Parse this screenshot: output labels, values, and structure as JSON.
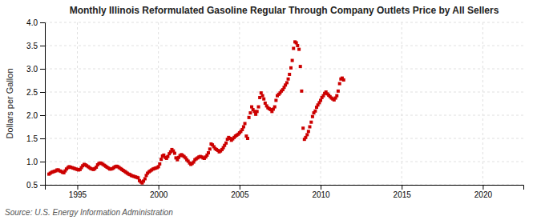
{
  "chart_data": {
    "type": "scatter",
    "title": "Monthly Illinois Reformulated Gasoline Regular Through Company Outlets Price by All Sellers",
    "ylabel": "Dollars per Gallon",
    "annotation": "Source: U.S. Energy Information Administration",
    "color": "#CC0000",
    "marker": "square",
    "grid": true,
    "xlim": [
      1993.0,
      2022.5
    ],
    "xticks": [
      1995,
      2000,
      2005,
      2010,
      2015,
      2020
    ],
    "ylim": [
      0.5,
      4.0
    ],
    "yticks": [
      0.5,
      {
        "value": 1.0,
        "label": "1.0"
      },
      1.5,
      {
        "value": 2.0,
        "label": "2.0"
      },
      2.5,
      {
        "value": 3.0,
        "label": "3.0"
      },
      3.5,
      {
        "value": 4.0,
        "label": "4.0"
      }
    ],
    "x": [
      1993.25,
      1993.33,
      1993.42,
      1993.5,
      1993.58,
      1993.67,
      1993.75,
      1993.83,
      1993.92,
      1994.0,
      1994.08,
      1994.17,
      1994.25,
      1994.33,
      1994.42,
      1994.5,
      1994.58,
      1994.67,
      1994.75,
      1994.83,
      1994.92,
      1995.0,
      1995.08,
      1995.17,
      1995.25,
      1995.33,
      1995.42,
      1995.5,
      1995.58,
      1995.67,
      1995.75,
      1995.83,
      1995.92,
      1996.0,
      1996.08,
      1996.17,
      1996.25,
      1996.33,
      1996.42,
      1996.5,
      1996.58,
      1996.67,
      1996.75,
      1996.83,
      1996.92,
      1997.0,
      1997.08,
      1997.17,
      1997.25,
      1997.33,
      1997.42,
      1997.5,
      1997.58,
      1997.67,
      1997.75,
      1997.83,
      1997.92,
      1998.0,
      1998.08,
      1998.17,
      1998.25,
      1998.33,
      1998.42,
      1998.5,
      1998.58,
      1998.67,
      1998.75,
      1998.83,
      1998.92,
      1999.0,
      1999.08,
      1999.17,
      1999.25,
      1999.33,
      1999.42,
      1999.5,
      1999.58,
      1999.67,
      1999.75,
      1999.83,
      1999.92,
      2000.0,
      2000.08,
      2000.17,
      2000.25,
      2000.33,
      2000.42,
      2000.5,
      2000.58,
      2000.67,
      2000.75,
      2000.83,
      2000.92,
      2001.0,
      2001.08,
      2001.17,
      2001.25,
      2001.33,
      2001.42,
      2001.5,
      2001.58,
      2001.67,
      2001.75,
      2001.83,
      2001.92,
      2002.0,
      2002.08,
      2002.17,
      2002.25,
      2002.33,
      2002.42,
      2002.5,
      2002.58,
      2002.67,
      2002.75,
      2002.83,
      2002.92,
      2003.0,
      2003.08,
      2003.17,
      2003.25,
      2003.33,
      2003.42,
      2003.5,
      2003.58,
      2003.67,
      2003.75,
      2003.83,
      2003.92,
      2004.0,
      2004.08,
      2004.17,
      2004.25,
      2004.33,
      2004.42,
      2004.5,
      2004.58,
      2004.67,
      2004.75,
      2004.83,
      2004.92,
      2005.0,
      2005.08,
      2005.17,
      2005.25,
      2005.33,
      2005.42,
      2005.5,
      2005.58,
      2005.67,
      2005.75,
      2005.83,
      2005.92,
      2006.0,
      2006.08,
      2006.17,
      2006.25,
      2006.33,
      2006.42,
      2006.5,
      2006.58,
      2006.67,
      2006.75,
      2006.83,
      2006.92,
      2007.0,
      2007.08,
      2007.17,
      2007.25,
      2007.33,
      2007.42,
      2007.5,
      2007.58,
      2007.67,
      2007.75,
      2007.83,
      2007.92,
      2008.0,
      2008.08,
      2008.17,
      2008.25,
      2008.33,
      2008.42,
      2008.5,
      2008.58,
      2008.67,
      2008.75,
      2008.83,
      2008.92,
      2009.0,
      2009.08,
      2009.17,
      2009.25,
      2009.33,
      2009.42,
      2009.5,
      2009.58,
      2009.67,
      2009.75,
      2009.83,
      2009.92,
      2010.0,
      2010.08,
      2010.17,
      2010.25,
      2010.33,
      2010.42,
      2010.5,
      2010.58,
      2010.67,
      2010.75,
      2010.83,
      2010.92,
      2011.0,
      2011.08,
      2011.17,
      2011.25,
      2011.33,
      2011.42
    ],
    "values": [
      0.73,
      0.75,
      0.77,
      0.78,
      0.79,
      0.8,
      0.82,
      0.82,
      0.8,
      0.79,
      0.77,
      0.76,
      0.8,
      0.84,
      0.87,
      0.89,
      0.88,
      0.87,
      0.86,
      0.85,
      0.84,
      0.83,
      0.82,
      0.83,
      0.87,
      0.91,
      0.94,
      0.93,
      0.91,
      0.89,
      0.87,
      0.85,
      0.84,
      0.83,
      0.85,
      0.88,
      0.93,
      0.96,
      0.97,
      0.96,
      0.94,
      0.92,
      0.9,
      0.88,
      0.86,
      0.84,
      0.84,
      0.85,
      0.87,
      0.89,
      0.9,
      0.89,
      0.87,
      0.85,
      0.83,
      0.81,
      0.79,
      0.77,
      0.75,
      0.73,
      0.72,
      0.7,
      0.69,
      0.68,
      0.67,
      0.66,
      0.65,
      0.59,
      0.56,
      0.54,
      0.58,
      0.63,
      0.7,
      0.75,
      0.78,
      0.8,
      0.82,
      0.84,
      0.85,
      0.86,
      0.87,
      0.89,
      0.95,
      1.05,
      1.12,
      1.14,
      1.09,
      1.07,
      1.11,
      1.17,
      1.21,
      1.26,
      1.23,
      1.18,
      1.08,
      1.04,
      1.09,
      1.13,
      1.15,
      1.13,
      1.11,
      1.08,
      1.04,
      1.01,
      0.97,
      0.94,
      0.96,
      0.99,
      1.04,
      1.06,
      1.08,
      1.1,
      1.11,
      1.1,
      1.08,
      1.07,
      1.1,
      1.14,
      1.19,
      1.27,
      1.38,
      1.36,
      1.32,
      1.28,
      1.26,
      1.24,
      1.21,
      1.23,
      1.26,
      1.3,
      1.35,
      1.4,
      1.48,
      1.52,
      1.5,
      1.46,
      1.49,
      1.52,
      1.55,
      1.57,
      1.59,
      1.62,
      1.65,
      1.69,
      1.75,
      1.82,
      1.55,
      1.5,
      1.95,
      2.05,
      2.18,
      2.12,
      2.08,
      2.02,
      2.08,
      2.18,
      2.38,
      2.48,
      2.42,
      2.35,
      2.26,
      2.2,
      2.16,
      2.14,
      2.12,
      2.08,
      2.13,
      2.18,
      2.32,
      2.42,
      2.45,
      2.48,
      2.52,
      2.55,
      2.6,
      2.65,
      2.7,
      2.78,
      2.88,
      3.02,
      3.18,
      3.44,
      3.58,
      3.56,
      3.5,
      3.42,
      3.05,
      2.52,
      1.72,
      1.48,
      1.52,
      1.58,
      1.65,
      1.75,
      1.85,
      1.97,
      2.05,
      2.09,
      2.17,
      2.22,
      2.27,
      2.32,
      2.38,
      2.42,
      2.47,
      2.5,
      2.46,
      2.43,
      2.4,
      2.37,
      2.35,
      2.33,
      2.37,
      2.42,
      2.52,
      2.68,
      2.78,
      2.8,
      2.76
    ]
  }
}
